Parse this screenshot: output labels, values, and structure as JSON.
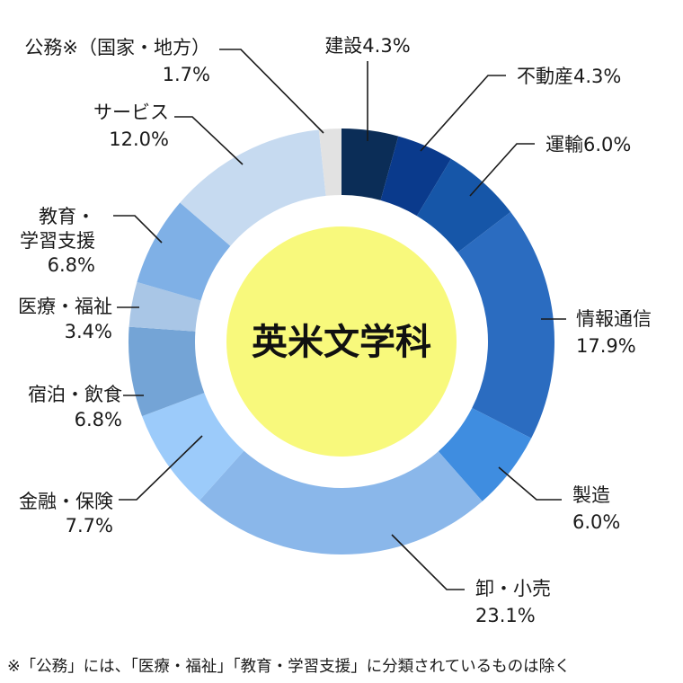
{
  "chart_data": {
    "type": "pie",
    "style": "donut",
    "center_label": "英米文学科",
    "unit": "%",
    "slices": [
      {
        "name": "建設",
        "value": 4.3,
        "value_text": "4.3%",
        "color": "#0b2d57"
      },
      {
        "name": "不動産",
        "value": 4.3,
        "value_text": "4.3%",
        "color": "#0a3a8c"
      },
      {
        "name": "運輸",
        "value": 6.0,
        "value_text": "6.0%",
        "color": "#1656a8"
      },
      {
        "name": "情報通信",
        "value": 17.9,
        "value_text": "17.9%",
        "color": "#2b6cc0"
      },
      {
        "name": "製造",
        "value": 6.0,
        "value_text": "6.0%",
        "color": "#3f8de0"
      },
      {
        "name": "卸・小売",
        "value": 23.1,
        "value_text": "23.1%",
        "color": "#8ab7ea"
      },
      {
        "name": "金融・保険",
        "value": 7.7,
        "value_text": "7.7%",
        "color": "#9ccbfa"
      },
      {
        "name": "宿泊・飲食",
        "value": 6.8,
        "value_text": "6.8%",
        "color": "#74a4d6"
      },
      {
        "name": "医療・福祉",
        "value": 3.4,
        "value_text": "3.4%",
        "color": "#a9c6e6"
      },
      {
        "name": "教育・学習支援",
        "value": 6.8,
        "value_text": "6.8%",
        "color": "#7fb0e6"
      },
      {
        "name": "サービス",
        "value": 12.0,
        "value_text": "12.0%",
        "color": "#c6daf0"
      },
      {
        "name": "公務※（国家・地方）",
        "value": 1.7,
        "value_text": "1.7%",
        "color": "#e2e2e2"
      }
    ],
    "center_color": "#f8f97c"
  },
  "footnote": "※「公務」には、「医療・福祉」「教育・学習支援」に分類されているものは除く"
}
